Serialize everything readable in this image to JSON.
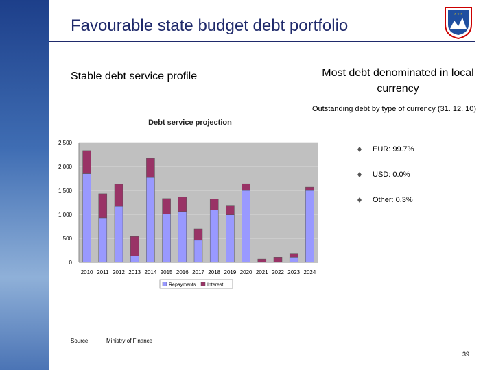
{
  "header": {
    "title": "Favourable state budget debt portfolio"
  },
  "left": {
    "heading": "Stable debt service profile"
  },
  "right": {
    "heading": "Most debt denominated in local currency",
    "subheading": "Outstanding debt by type of currency (31. 12. 10)",
    "bullets": [
      "EUR: 99.7%",
      "USD: 0.0%",
      "Other: 0.3%"
    ]
  },
  "source": {
    "label": "Source:",
    "text": "Ministry of Finance"
  },
  "page_number": "39",
  "chart_data": {
    "type": "stacked_bar",
    "title": "Debt service projection",
    "categories": [
      "2010",
      "2011",
      "2012",
      "2013",
      "2014",
      "2015",
      "2016",
      "2017",
      "2018",
      "2019",
      "2020",
      "2021",
      "2022",
      "2023",
      "2024"
    ],
    "series": [
      {
        "name": "Repayments",
        "color": "#9999ff",
        "values": [
          1850,
          930,
          1170,
          140,
          1770,
          1010,
          1060,
          460,
          1090,
          990,
          1500,
          0,
          0,
          110,
          1500
        ]
      },
      {
        "name": "Interest",
        "color": "#993366",
        "values": [
          480,
          500,
          460,
          400,
          400,
          320,
          300,
          240,
          230,
          200,
          140,
          70,
          110,
          80,
          70
        ]
      }
    ],
    "ylim": [
      0,
      2500
    ],
    "yticks": [
      0,
      500,
      {
        "value": 1000,
        "label": "1.000"
      },
      {
        "value": 1500,
        "label": "1.500"
      },
      {
        "value": 2000,
        "label": "2.000"
      },
      {
        "value": 2500,
        "label": "2.500"
      }
    ],
    "grid": true,
    "legend": "bottom"
  }
}
